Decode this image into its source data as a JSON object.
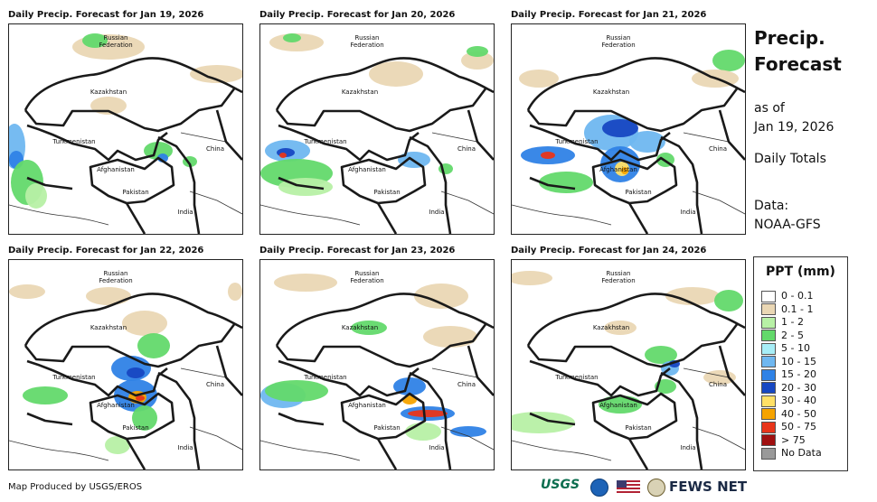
{
  "panels": [
    {
      "title": "Daily Precip. Forecast for Jan 19, 2026"
    },
    {
      "title": "Daily Precip. Forecast for Jan 20, 2026"
    },
    {
      "title": "Daily Precip. Forecast for Jan 21, 2026"
    },
    {
      "title": "Daily Precip. Forecast for Jan 22, 2026"
    },
    {
      "title": "Daily Precip. Forecast for Jan 23, 2026"
    },
    {
      "title": "Daily Precip. Forecast for Jan 24, 2026"
    }
  ],
  "labels": {
    "russia_1": "Russian",
    "russia_2": "Federation",
    "kazakhstan": "Kazakhstan",
    "turkmenistan": "Turkmenistan",
    "afghanistan": "Afghanistan",
    "pakistan": "Pakistan",
    "china": "China",
    "india": "India"
  },
  "side": {
    "title_1": "Precip.",
    "title_2": "Forecast",
    "asof_1": "as of",
    "asof_2": "Jan 19, 2026",
    "daily": "Daily Totals",
    "data_1": "Data:",
    "data_2": "NOAA-GFS"
  },
  "legend": {
    "title": "PPT (mm)",
    "items": [
      {
        "label": "0 - 0.1",
        "color": "#ffffff"
      },
      {
        "label": "0.1 - 1",
        "color": "#ead7b4"
      },
      {
        "label": "1 - 2",
        "color": "#b7f0a5"
      },
      {
        "label": "2 - 5",
        "color": "#63d96b"
      },
      {
        "label": "5 - 10",
        "color": "#a7eef7"
      },
      {
        "label": "10 - 15",
        "color": "#6fb7f0"
      },
      {
        "label": "15 - 20",
        "color": "#2f82e6"
      },
      {
        "label": "20 - 30",
        "color": "#1747c2"
      },
      {
        "label": "30 - 40",
        "color": "#ffe066"
      },
      {
        "label": "40 - 50",
        "color": "#f5a300"
      },
      {
        "label": "50 - 75",
        "color": "#e8351a"
      },
      {
        "label": "> 75",
        "color": "#a01010"
      },
      {
        "label": "No Data",
        "color": "#999999"
      }
    ]
  },
  "footer": {
    "credit": "Map Produced by USGS/EROS",
    "usgs": "USGS",
    "fewsnet": "FEWS NET"
  }
}
